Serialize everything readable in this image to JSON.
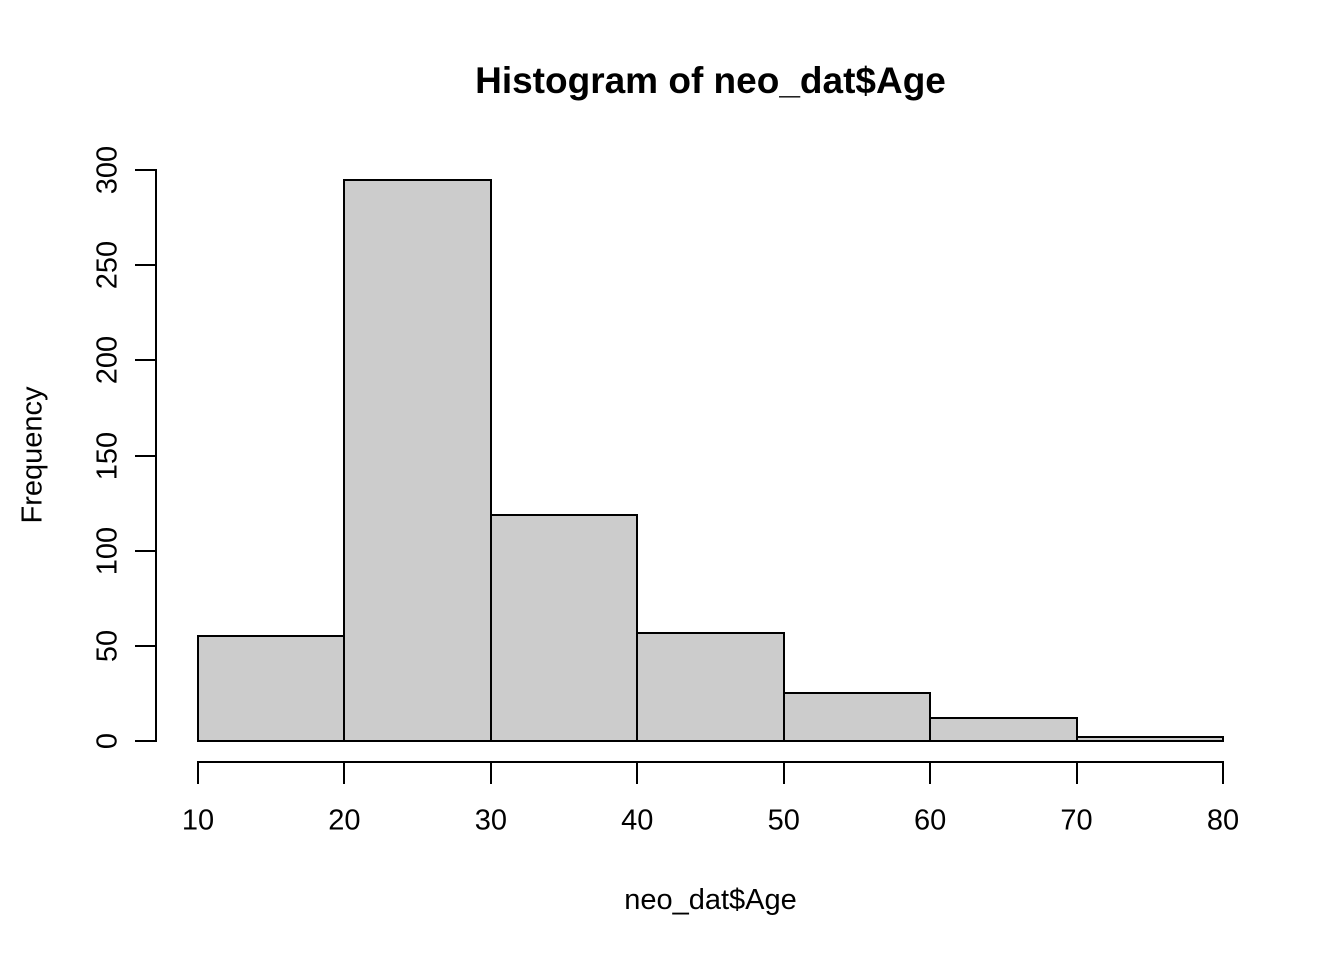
{
  "chart_data": {
    "type": "bar",
    "subtype": "histogram",
    "title": "Histogram of neo_dat$Age",
    "xlabel": "neo_dat$Age",
    "ylabel": "Frequency",
    "breaks": [
      10,
      20,
      30,
      40,
      50,
      60,
      70,
      80
    ],
    "counts": [
      55,
      295,
      119,
      57,
      25,
      12,
      2
    ],
    "bins": [
      {
        "range": "10-20",
        "count": 55
      },
      {
        "range": "20-30",
        "count": 295
      },
      {
        "range": "30-40",
        "count": 119
      },
      {
        "range": "40-50",
        "count": 57
      },
      {
        "range": "50-60",
        "count": 25
      },
      {
        "range": "60-70",
        "count": 12
      },
      {
        "range": "70-80",
        "count": 2
      }
    ],
    "xlim": [
      10,
      80
    ],
    "ylim": [
      0,
      300
    ],
    "x_ticks": [
      10,
      20,
      30,
      40,
      50,
      60,
      70,
      80
    ],
    "y_ticks": [
      0,
      50,
      100,
      150,
      200,
      250,
      300
    ],
    "grid": false,
    "legend": false,
    "colors": {
      "bar_fill": "#cccccc",
      "bar_border": "#000000",
      "axis": "#000000",
      "text": "#000000",
      "background": "#ffffff"
    }
  }
}
